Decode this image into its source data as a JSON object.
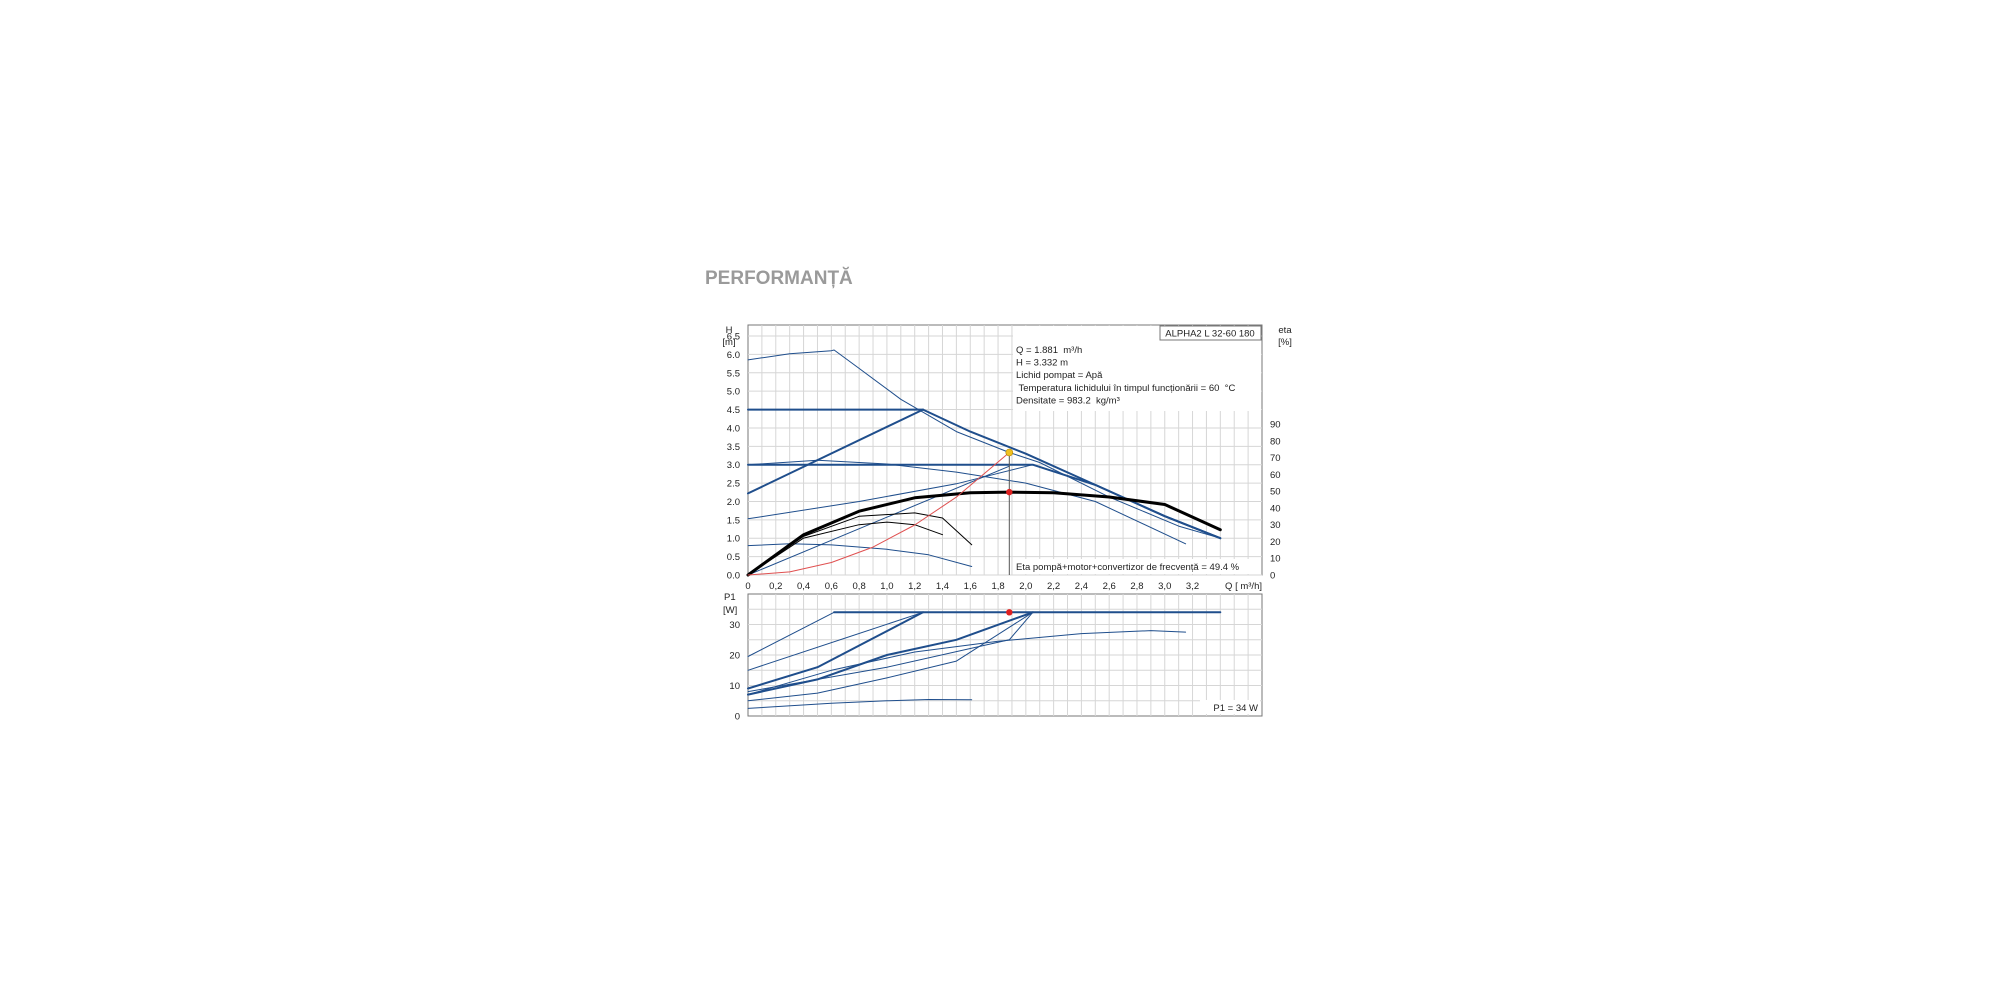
{
  "page": {
    "section_title": "PERFORMANȚĂ"
  },
  "chart_data": [
    {
      "type": "line",
      "title": "ALPHA2 L 32-60 180",
      "y_label_line1": "H",
      "y_label_line2": "[m]",
      "y2_label_line1": "eta",
      "y2_label_line2": "[%]",
      "x_label": "Q [ m³/h]",
      "xlim": [
        0,
        3.7
      ],
      "ylim": [
        0,
        6.8
      ],
      "y2lim": [
        0,
        90
      ],
      "x_ticks": [
        0,
        0.2,
        0.4,
        0.6,
        0.8,
        1.0,
        1.2,
        1.4,
        1.6,
        1.8,
        2.0,
        2.2,
        2.4,
        2.6,
        2.8,
        3.0,
        3.2
      ],
      "x_tick_labels": [
        "0",
        "0,2",
        "0,4",
        "0,6",
        "0,8",
        "1,0",
        "1,2",
        "1,4",
        "1,6",
        "1,8",
        "2,0",
        "2,2",
        "2,4",
        "2,6",
        "2,8",
        "3,0",
        "3,2"
      ],
      "y_ticks": [
        0,
        0.5,
        1.0,
        1.5,
        2.0,
        2.5,
        3.0,
        3.5,
        4.0,
        4.5,
        5.0,
        5.5,
        6.0,
        6.5
      ],
      "y_tick_labels": [
        "0.0",
        "0.5",
        "1.0",
        "1.5",
        "2.0",
        "2.5",
        "3.0",
        "3.5",
        "4.0",
        "4.5",
        "5.0",
        "5.5",
        "6.0",
        "6.5"
      ],
      "y2_ticks": [
        0,
        10,
        20,
        30,
        40,
        50,
        60,
        70,
        80,
        90
      ],
      "y2_tick_labels": [
        "0",
        "10",
        "20",
        "30",
        "40",
        "50",
        "60",
        "70",
        "80",
        "90"
      ],
      "grid": true,
      "info_lines": [
        "Q = 1.881  m³/h",
        "H = 3.332 m",
        "Lichid pompat = Apă",
        " Temperatura lichidului în timpul funcționării = 60  °C",
        "Densitate = 983.2  kg/m³"
      ],
      "eta_label": "Eta pompă+motor+convertizor de frecvență = 49.4 %",
      "series": [
        {
          "color": "#1f4e8c",
          "width": 1,
          "points": [
            [
              0,
              5.85
            ],
            [
              0.3,
              6.02
            ],
            [
              0.6,
              6.1
            ],
            [
              0.62,
              6.12
            ],
            [
              0.8,
              5.62
            ],
            [
              1.1,
              4.78
            ],
            [
              1.5,
              3.9
            ],
            [
              1.881,
              3.332
            ],
            [
              2.1,
              3.06
            ],
            [
              2.6,
              2.12
            ],
            [
              3.1,
              1.33
            ],
            [
              3.4,
              1.0
            ]
          ]
        },
        {
          "color": "#1f4e8c",
          "width": 2,
          "points": [
            [
              0,
              4.5
            ],
            [
              1.26,
              4.5
            ],
            [
              1.6,
              3.9
            ],
            [
              2.0,
              3.3
            ],
            [
              2.5,
              2.45
            ],
            [
              3.0,
              1.6
            ],
            [
              3.4,
              1.0
            ]
          ]
        },
        {
          "color": "#1f4e8c",
          "width": 2,
          "points": [
            [
              0,
              2.22
            ],
            [
              1.26,
              4.5
            ]
          ]
        },
        {
          "color": "#1f4e8c",
          "width": 2,
          "points": [
            [
              0,
              3.0
            ],
            [
              2.05,
              3.0
            ],
            [
              2.5,
              2.45
            ],
            [
              3.0,
              1.6
            ],
            [
              3.4,
              1.0
            ]
          ]
        },
        {
          "color": "#1f4e8c",
          "width": 1,
          "points": [
            [
              0,
              3.0
            ],
            [
              0.5,
              3.12
            ],
            [
              1.0,
              3.02
            ],
            [
              1.5,
              2.8
            ],
            [
              2.0,
              2.5
            ],
            [
              2.5,
              2.0
            ],
            [
              3.15,
              0.85
            ]
          ]
        },
        {
          "color": "#1f4e8c",
          "width": 1,
          "points": [
            [
              0,
              1.53
            ],
            [
              0.8,
              2.0
            ],
            [
              1.5,
              2.48
            ],
            [
              2.05,
              3.0
            ]
          ]
        },
        {
          "color": "#1f4e8c",
          "width": 1,
          "points": [
            [
              0,
              0.8
            ],
            [
              0.3,
              0.85
            ],
            [
              0.6,
              0.82
            ],
            [
              1.0,
              0.7
            ],
            [
              1.3,
              0.55
            ],
            [
              1.61,
              0.23
            ]
          ]
        },
        {
          "color": "#1f4e8c",
          "width": 1,
          "points": [
            [
              0,
              0.0
            ],
            [
              1.881,
              2.96
            ]
          ]
        }
      ],
      "eta_series": [
        {
          "color": "#000000",
          "width": 3,
          "points": [
            [
              0,
              0
            ],
            [
              0.4,
              24
            ],
            [
              0.8,
              38
            ],
            [
              1.2,
              46
            ],
            [
              1.6,
              49
            ],
            [
              1.881,
              49.4
            ],
            [
              2.2,
              49
            ],
            [
              2.6,
              46.5
            ],
            [
              3.0,
              42
            ],
            [
              3.4,
              27
            ]
          ]
        },
        {
          "color": "#000000",
          "width": 1,
          "points": [
            [
              0,
              0
            ],
            [
              0.4,
              23
            ],
            [
              0.8,
              35
            ],
            [
              1.2,
              37
            ],
            [
              1.4,
              34
            ],
            [
              1.61,
              18
            ]
          ]
        },
        {
          "color": "#000000",
          "width": 1,
          "points": [
            [
              0,
              0
            ],
            [
              0.4,
              22
            ],
            [
              0.8,
              30
            ],
            [
              1.0,
              31.5
            ],
            [
              1.2,
              30
            ],
            [
              1.4,
              24
            ]
          ]
        }
      ],
      "system_curve": {
        "color": "#e05050",
        "points": [
          [
            0,
            0
          ],
          [
            0.3,
            0.085
          ],
          [
            0.6,
            0.34
          ],
          [
            0.9,
            0.76
          ],
          [
            1.2,
            1.36
          ],
          [
            1.5,
            2.12
          ],
          [
            1.881,
            3.332
          ]
        ]
      },
      "duty_point": {
        "q": 1.881,
        "h": 3.332,
        "color": "#f0c020"
      },
      "eta_point": {
        "q": 1.881,
        "eta": 49.4,
        "color": "#e02020"
      }
    },
    {
      "type": "line",
      "y_label_line1": "P1",
      "y_label_line2": "[W]",
      "ylim": [
        0,
        40
      ],
      "y_ticks": [
        0,
        10,
        20,
        30
      ],
      "y_tick_labels": [
        "0",
        "10",
        "20",
        "30"
      ],
      "grid": true,
      "power_label": "P1 = 34 W",
      "series": [
        {
          "color": "#1f4e8c",
          "width": 2,
          "points": [
            [
              0.62,
              34
            ],
            [
              3.4,
              34
            ]
          ]
        },
        {
          "color": "#1f4e8c",
          "width": 1,
          "points": [
            [
              0,
              19.5
            ],
            [
              0.62,
              34
            ]
          ]
        },
        {
          "color": "#1f4e8c",
          "width": 1,
          "points": [
            [
              0,
              15
            ],
            [
              1.26,
              34
            ]
          ]
        },
        {
          "color": "#1f4e8c",
          "width": 2,
          "points": [
            [
              0,
              9
            ],
            [
              0.5,
              16
            ],
            [
              1.26,
              34
            ]
          ]
        },
        {
          "color": "#1f4e8c",
          "width": 2,
          "points": [
            [
              0,
              7
            ],
            [
              0.5,
              12
            ],
            [
              1.0,
              20
            ],
            [
              1.5,
              25
            ],
            [
              2.05,
              34
            ]
          ]
        },
        {
          "color": "#1f4e8c",
          "width": 1,
          "points": [
            [
              0,
              8
            ],
            [
              1.0,
              16
            ],
            [
              1.881,
              25
            ],
            [
              2.05,
              34
            ]
          ]
        },
        {
          "color": "#1f4e8c",
          "width": 1,
          "points": [
            [
              0,
              5
            ],
            [
              0.5,
              7.5
            ],
            [
              1.0,
              12.5
            ],
            [
              1.5,
              18
            ],
            [
              2.05,
              34
            ]
          ]
        },
        {
          "color": "#1f4e8c",
          "width": 1,
          "points": [
            [
              0,
              7
            ],
            [
              0.6,
              15
            ],
            [
              1.2,
              21
            ],
            [
              1.8,
              24.5
            ],
            [
              2.4,
              27
            ],
            [
              2.9,
              28
            ],
            [
              3.15,
              27.5
            ]
          ]
        },
        {
          "color": "#1f4e8c",
          "width": 1,
          "points": [
            [
              0,
              2.5
            ],
            [
              0.6,
              4.2
            ],
            [
              1.0,
              5.0
            ],
            [
              1.3,
              5.4
            ],
            [
              1.61,
              5.3
            ]
          ]
        }
      ],
      "operating_point": {
        "q": 1.881,
        "p1": 34,
        "color": "#e02020"
      }
    }
  ]
}
